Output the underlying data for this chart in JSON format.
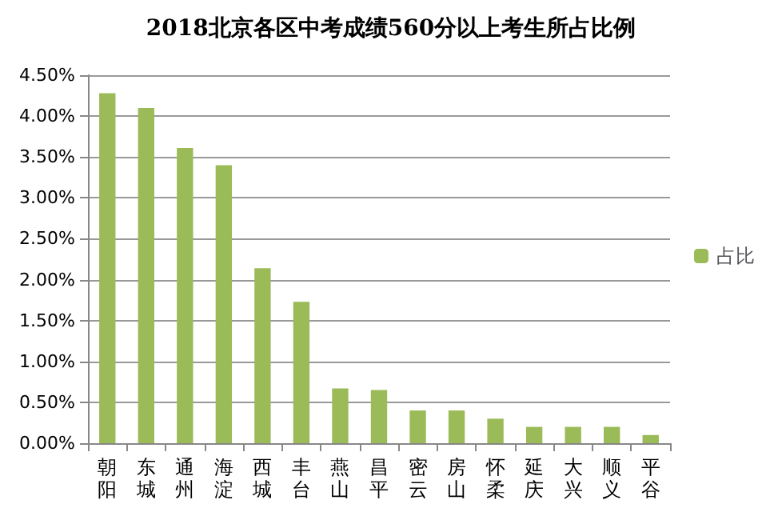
{
  "chart_data": {
    "type": "bar",
    "title": "2018北京各区中考成绩560分以上考生所占比例",
    "categories": [
      "朝阳",
      "东城",
      "通州",
      "海淀",
      "西城",
      "丰台",
      "燕山",
      "昌平",
      "密云",
      "房山",
      "怀柔",
      "延庆",
      "大兴",
      "顺义",
      "平谷"
    ],
    "series": [
      {
        "name": "占比",
        "color": "#9bbb59",
        "values": [
          4.28,
          4.1,
          3.61,
          3.4,
          2.14,
          1.73,
          0.67,
          0.65,
          0.4,
          0.4,
          0.3,
          0.2,
          0.2,
          0.2,
          0.1
        ]
      }
    ],
    "ylim": [
      0,
      4.5
    ],
    "yticks": [
      {
        "value": 0,
        "label": "0.00%"
      },
      {
        "value": 0.5,
        "label": "0.50%"
      },
      {
        "value": 1,
        "label": "1.00%"
      },
      {
        "value": 1.5,
        "label": "1.50%"
      },
      {
        "value": 2,
        "label": "2.00%"
      },
      {
        "value": 2.5,
        "label": "2.50%"
      },
      {
        "value": 3,
        "label": "3.00%"
      },
      {
        "value": 3.5,
        "label": "3.50%"
      },
      {
        "value": 4,
        "label": "4.00%"
      },
      {
        "value": 4.5,
        "label": "4.50%"
      }
    ],
    "grid": "y",
    "legend": "right"
  }
}
